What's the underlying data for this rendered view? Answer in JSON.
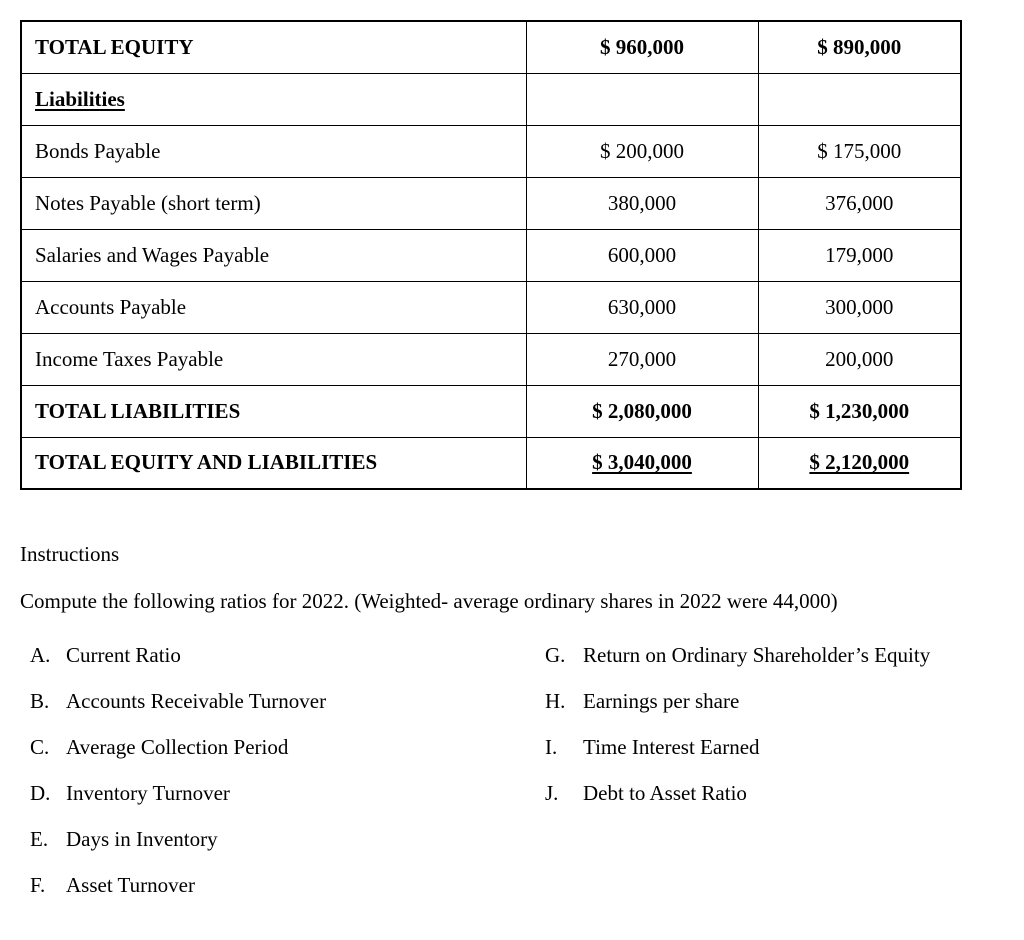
{
  "table": {
    "rows": [
      {
        "label": "TOTAL EQUITY",
        "col1": "$ 960,000",
        "col2": "$ 890,000"
      },
      {
        "label": "Liabilities",
        "col1": "",
        "col2": ""
      },
      {
        "label": "Bonds Payable",
        "col1": "$ 200,000",
        "col2": "$ 175,000"
      },
      {
        "label": "Notes Payable (short term)",
        "col1": "380,000",
        "col2": "376,000"
      },
      {
        "label": "Salaries and Wages Payable",
        "col1": "600,000",
        "col2": "179,000"
      },
      {
        "label": "Accounts Payable",
        "col1": "630,000",
        "col2": "300,000"
      },
      {
        "label": "Income Taxes Payable",
        "col1": "270,000",
        "col2": "200,000"
      },
      {
        "label": "TOTAL LIABILITIES",
        "col1": "$ 2,080,000",
        "col2": "$ 1,230,000"
      },
      {
        "label": "TOTAL EQUITY AND LIABILITIES",
        "col1": "$ 3,040,000",
        "col2": "$ 2,120,000"
      }
    ]
  },
  "instructions": {
    "heading": "Instructions",
    "intro": "Compute the following ratios for 2022. (Weighted- average ordinary shares in 2022 were 44,000)",
    "left_items": [
      {
        "letter": "A.",
        "text": "Current Ratio"
      },
      {
        "letter": "B.",
        "text": "Accounts Receivable Turnover"
      },
      {
        "letter": "C.",
        "text": "Average Collection Period"
      },
      {
        "letter": "D.",
        "text": "Inventory Turnover"
      },
      {
        "letter": "E.",
        "text": "Days in Inventory"
      },
      {
        "letter": "F.",
        "text": "Asset Turnover"
      }
    ],
    "right_items": [
      {
        "letter": "G.",
        "text": "Return on Ordinary Shareholder’s Equity"
      },
      {
        "letter": "H.",
        "text": "Earnings per share"
      },
      {
        "letter": "I.",
        "text": "Time Interest Earned"
      },
      {
        "letter": "J.",
        "text": "Debt to Asset Ratio"
      }
    ]
  }
}
